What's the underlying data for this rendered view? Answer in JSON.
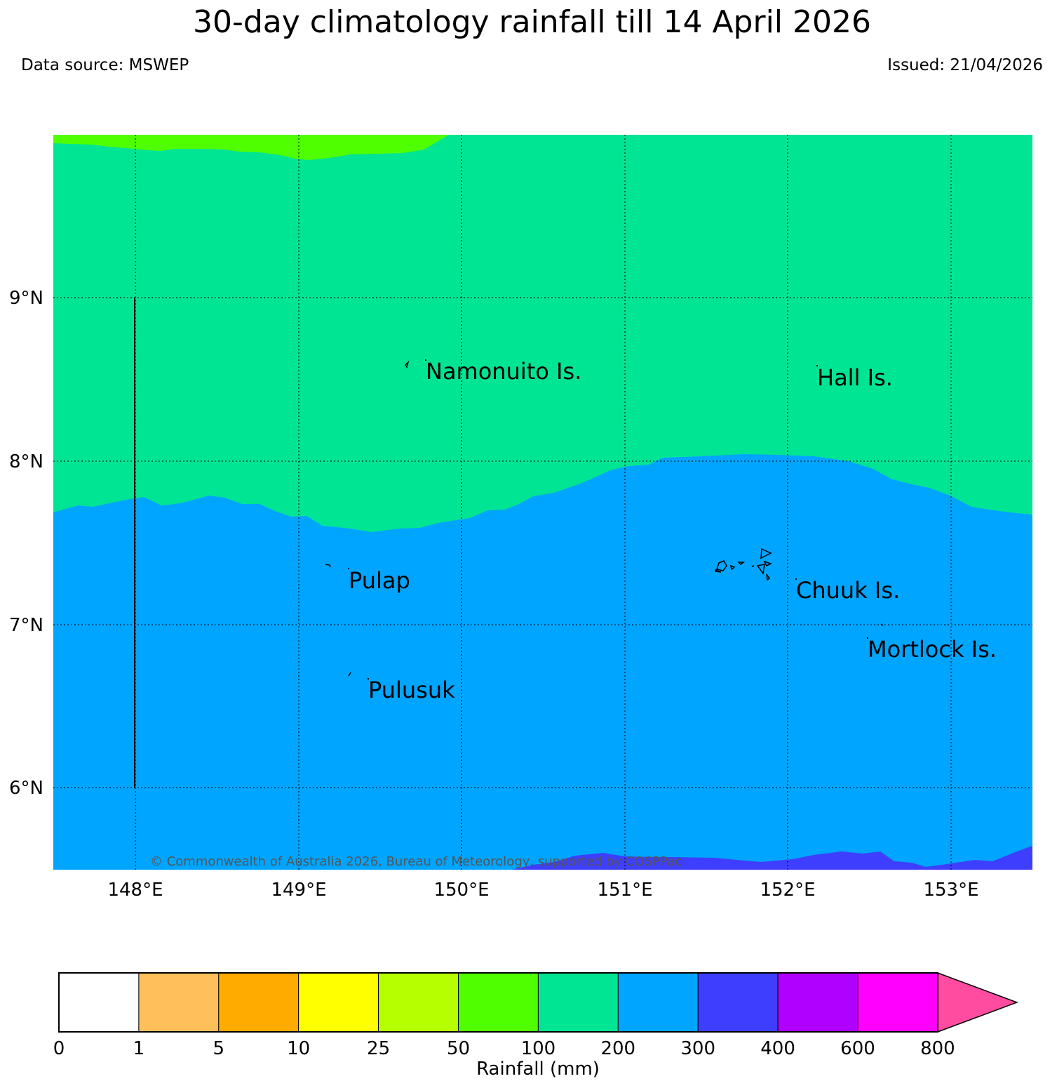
{
  "title": "30-day climatology rainfall till 14 April 2026",
  "data_source": "Data source: MSWEP",
  "issued": "Issued: 21/04/2026",
  "copyright": "© Commonwealth of Australia 2026, Bureau of Meteorology, supported by COSPPac",
  "map": {
    "lon_range": [
      147.5,
      153.5
    ],
    "lat_range": [
      5.5,
      10.0
    ],
    "lon_ticks": [
      "148°E",
      "149°E",
      "150°E",
      "151°E",
      "152°E",
      "153°E"
    ],
    "lat_ticks": [
      "9°N",
      "8°N",
      "7°N",
      "6°N"
    ],
    "places": [
      {
        "name": "Namonuito Is."
      },
      {
        "name": "Hall Is."
      },
      {
        "name": "Pulap"
      },
      {
        "name": "Chuuk Is."
      },
      {
        "name": "Mortlock Is."
      },
      {
        "name": "Pulusuk"
      }
    ],
    "rainfall_zones": [
      {
        "range_mm": "50-100",
        "color": "#4fff00"
      },
      {
        "range_mm": "100-200",
        "color": "#00e594"
      },
      {
        "range_mm": "200-300",
        "color": "#00a5ff"
      },
      {
        "range_mm": "300-400",
        "color": "#3e3eff"
      }
    ]
  },
  "colorbar": {
    "label": "Rainfall (mm)",
    "ticks": [
      "0",
      "1",
      "5",
      "10",
      "25",
      "50",
      "100",
      "200",
      "300",
      "400",
      "600",
      "800"
    ],
    "colors": [
      "#ffffff",
      "#ffbf5a",
      "#ffab00",
      "#ffff00",
      "#b6ff00",
      "#4fff00",
      "#00e594",
      "#00a5ff",
      "#3e3eff",
      "#b000ff",
      "#ff00ff"
    ],
    "extend_color": "#ff4ca0"
  }
}
